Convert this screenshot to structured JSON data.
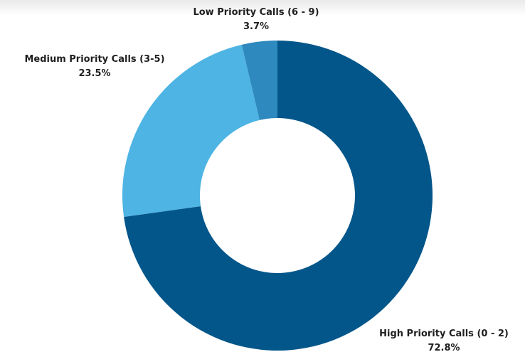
{
  "chart_data": {
    "type": "pie",
    "donut": true,
    "categories": [
      "High Priority Calls (0 - 2)",
      "Medium Priority Calls (3-5)",
      "Low Priority Calls (6 - 9)"
    ],
    "values": [
      72.8,
      23.5,
      3.7
    ],
    "data_labels": [
      "72.8%",
      "23.5%",
      "3.7%"
    ],
    "colors": [
      "#03568a",
      "#4db4e4",
      "#2e89be"
    ],
    "title": "",
    "legend": "none"
  }
}
